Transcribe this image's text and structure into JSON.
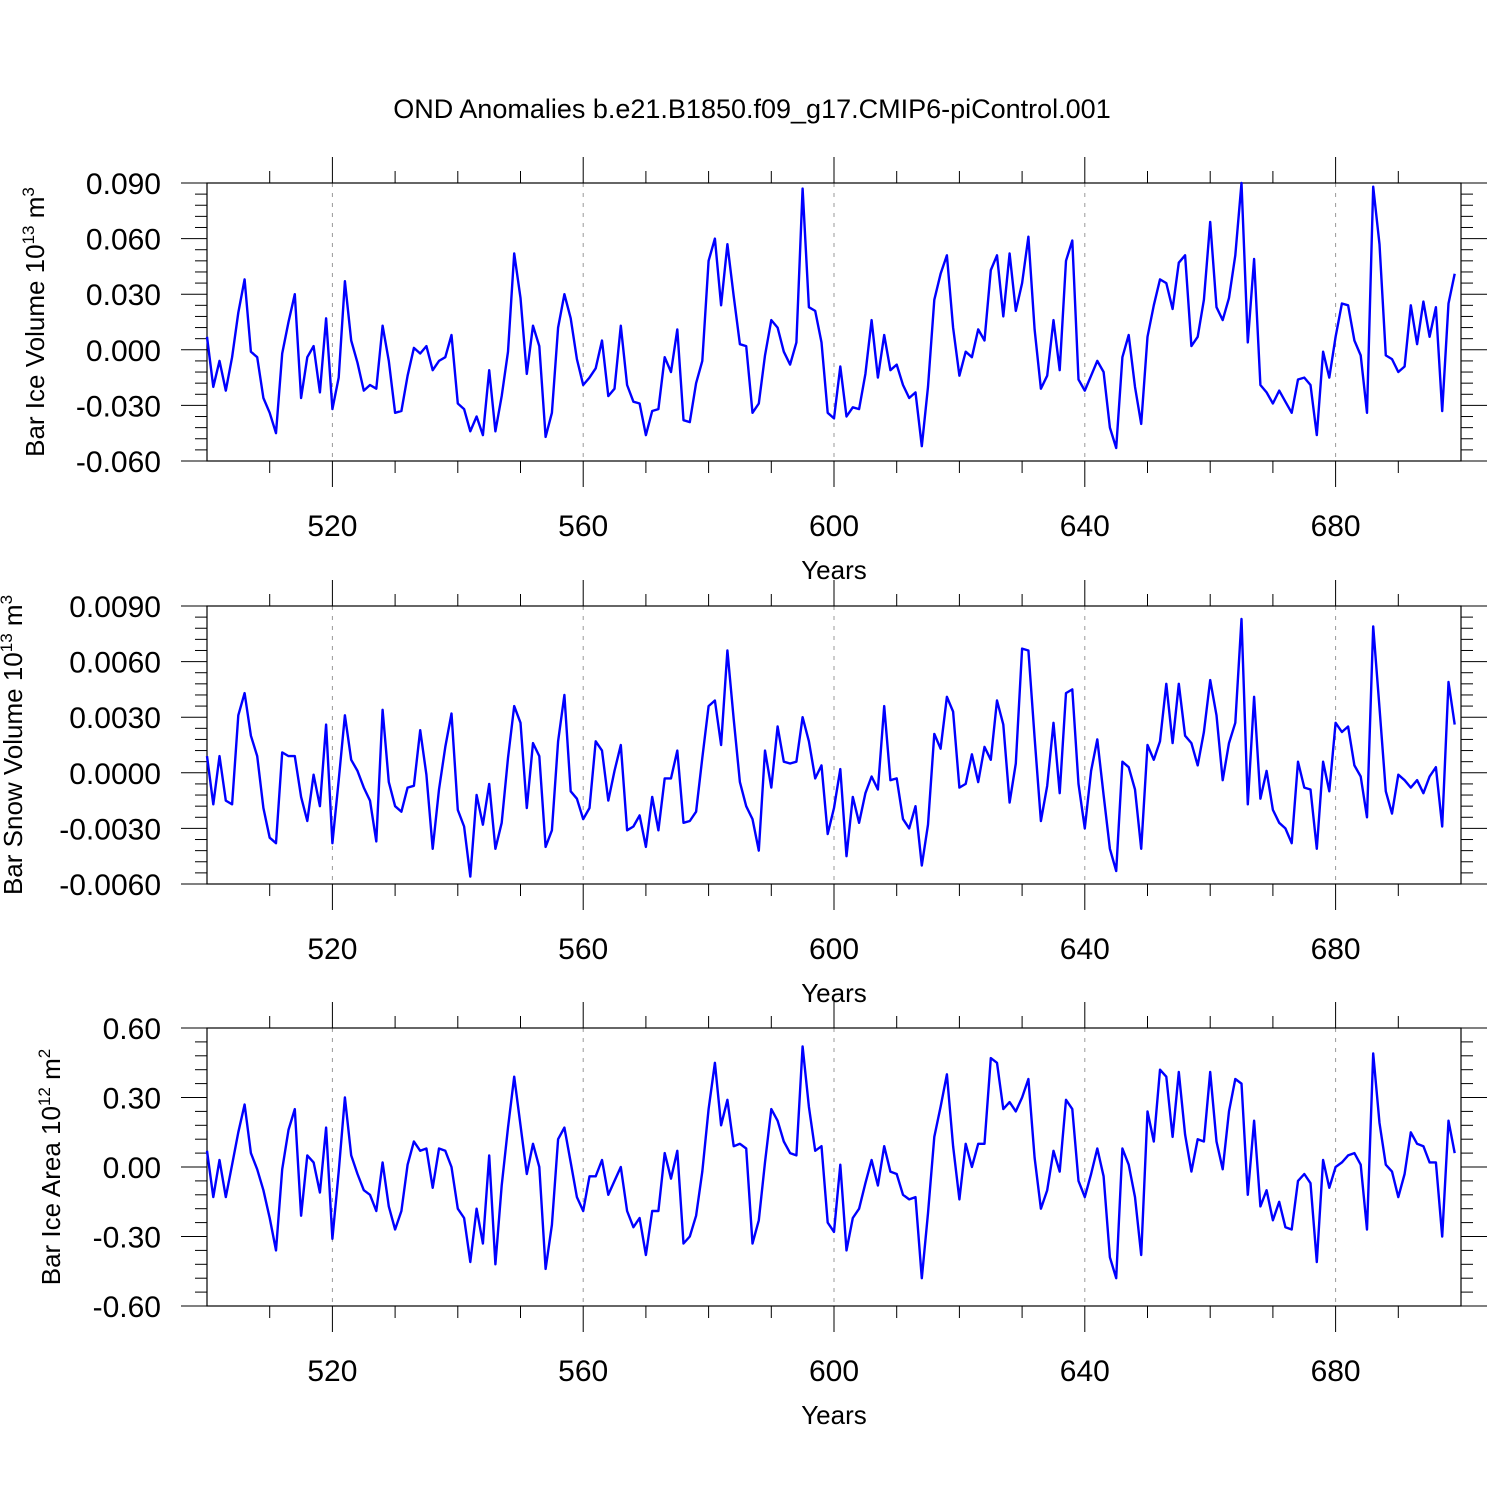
{
  "figure": {
    "title": "OND Anomalies b.e21.B1850.f09_g17.CMIP6-piControl.001",
    "line_color": "#0000ff"
  },
  "chart_data": [
    {
      "type": "line",
      "title": "OND Anomalies b.e21.B1850.f09_g17.CMIP6-piControl.001",
      "xlabel": "Years",
      "ylabel": "Bar Ice Volume",
      "ylabel_unit_base": "10",
      "ylabel_unit_exp": "13",
      "ylabel_unit_name": "m",
      "ylabel_unit_name_exp": "3",
      "xlim": [
        500,
        700
      ],
      "ylim": [
        -0.06,
        0.09
      ],
      "xticks": [
        520,
        560,
        600,
        640,
        680
      ],
      "xtick_labels": [
        "520",
        "560",
        "600",
        "640",
        "680"
      ],
      "yticks": [
        -0.06,
        -0.03,
        0.0,
        0.03,
        0.06,
        0.09
      ],
      "ytick_labels": [
        "-0.060",
        "-0.030",
        "0.000",
        "0.030",
        "0.060",
        "0.090"
      ],
      "x_start": 500,
      "values": [
        0.007,
        -0.02,
        -0.006,
        -0.022,
        -0.004,
        0.02,
        0.038,
        -0.001,
        -0.004,
        -0.026,
        -0.034,
        -0.045,
        -0.002,
        0.015,
        0.03,
        -0.026,
        -0.004,
        0.002,
        -0.023,
        0.017,
        -0.032,
        -0.015,
        0.037,
        0.005,
        -0.007,
        -0.022,
        -0.019,
        -0.021,
        0.013,
        -0.006,
        -0.034,
        -0.033,
        -0.014,
        0.001,
        -0.002,
        0.002,
        -0.011,
        -0.006,
        -0.004,
        0.008,
        -0.029,
        -0.032,
        -0.044,
        -0.036,
        -0.046,
        -0.011,
        -0.044,
        -0.025,
        -0.001,
        0.052,
        0.028,
        -0.013,
        0.013,
        0.002,
        -0.047,
        -0.034,
        0.012,
        0.03,
        0.017,
        -0.005,
        -0.019,
        -0.015,
        -0.01,
        0.005,
        -0.025,
        -0.021,
        0.013,
        -0.019,
        -0.028,
        -0.029,
        -0.046,
        -0.033,
        -0.032,
        -0.004,
        -0.012,
        0.011,
        -0.038,
        -0.039,
        -0.018,
        -0.006,
        0.048,
        0.06,
        0.024,
        0.057,
        0.029,
        0.003,
        0.002,
        -0.034,
        -0.029,
        -0.003,
        0.016,
        0.012,
        -0.001,
        -0.008,
        0.004,
        0.087,
        0.023,
        0.021,
        0.004,
        -0.034,
        -0.037,
        -0.009,
        -0.036,
        -0.031,
        -0.032,
        -0.013,
        0.016,
        -0.015,
        0.008,
        -0.011,
        -0.008,
        -0.019,
        -0.026,
        -0.023,
        -0.052,
        -0.02,
        0.027,
        0.041,
        0.051,
        0.012,
        -0.014,
        -0.001,
        -0.004,
        0.011,
        0.005,
        0.043,
        0.051,
        0.018,
        0.052,
        0.021,
        0.036,
        0.061,
        0.011,
        -0.021,
        -0.014,
        0.016,
        -0.011,
        0.048,
        0.059,
        -0.016,
        -0.022,
        -0.014,
        -0.006,
        -0.012,
        -0.042,
        -0.053,
        -0.004,
        0.008,
        -0.02,
        -0.04,
        0.007,
        0.024,
        0.038,
        0.036,
        0.022,
        0.047,
        0.051,
        0.002,
        0.007,
        0.027,
        0.069,
        0.023,
        0.016,
        0.028,
        0.051,
        0.09,
        0.004,
        0.049,
        -0.019,
        -0.023,
        -0.029,
        -0.022,
        -0.028,
        -0.034,
        -0.016,
        -0.015,
        -0.019,
        -0.046,
        -0.001,
        -0.015,
        0.007,
        0.025,
        0.024,
        0.005,
        -0.003,
        -0.034,
        0.088,
        0.057,
        -0.003,
        -0.005,
        -0.012,
        -0.009,
        0.024,
        0.003,
        0.026,
        0.007,
        0.023,
        -0.033,
        0.025,
        0.041
      ]
    },
    {
      "type": "line",
      "xlabel": "Years",
      "ylabel": "Bar Snow Volume",
      "ylabel_unit_base": "10",
      "ylabel_unit_exp": "13",
      "ylabel_unit_name": "m",
      "ylabel_unit_name_exp": "3",
      "xlim": [
        500,
        700
      ],
      "ylim": [
        -0.006,
        0.009
      ],
      "xticks": [
        520,
        560,
        600,
        640,
        680
      ],
      "xtick_labels": [
        "520",
        "560",
        "600",
        "640",
        "680"
      ],
      "yticks": [
        -0.006,
        -0.003,
        0.0,
        0.003,
        0.006,
        0.009
      ],
      "ytick_labels": [
        "-0.0060",
        "-0.0030",
        "0.0000",
        "0.0030",
        "0.0060",
        "0.0090"
      ],
      "x_start": 500,
      "values": [
        0.0009,
        -0.0017,
        0.0009,
        -0.0015,
        -0.0017,
        0.0031,
        0.0043,
        0.002,
        0.0009,
        -0.0019,
        -0.0035,
        -0.0038,
        0.0011,
        0.0009,
        0.0009,
        -0.0013,
        -0.0026,
        -0.0001,
        -0.0018,
        0.0026,
        -0.0038,
        -0.0004,
        0.0031,
        0.0007,
        0.0001,
        -0.0008,
        -0.0015,
        -0.0037,
        0.0034,
        -0.0005,
        -0.0018,
        -0.0021,
        -0.0008,
        -0.0007,
        0.0023,
        -0.0001,
        -0.0041,
        -0.0009,
        0.0014,
        0.0032,
        -0.002,
        -0.0029,
        -0.0056,
        -0.0012,
        -0.0028,
        -0.0006,
        -0.0041,
        -0.0027,
        0.0008,
        0.0036,
        0.0027,
        -0.0019,
        0.0016,
        0.0009,
        -0.004,
        -0.0031,
        0.0017,
        0.0042,
        -0.001,
        -0.0014,
        -0.0025,
        -0.0019,
        0.0017,
        0.0012,
        -0.0015,
        0.0001,
        0.0015,
        -0.0031,
        -0.0029,
        -0.0023,
        -0.004,
        -0.0013,
        -0.0031,
        -0.0003,
        -0.0003,
        0.0012,
        -0.0027,
        -0.0026,
        -0.0021,
        0.0008,
        0.0036,
        0.0039,
        0.0015,
        0.0066,
        0.0029,
        -0.0005,
        -0.0018,
        -0.0025,
        -0.0042,
        0.0012,
        -0.0008,
        0.0025,
        0.0006,
        0.0005,
        0.0006,
        0.003,
        0.0017,
        -0.0003,
        0.0004,
        -0.0033,
        -0.0019,
        0.0002,
        -0.0045,
        -0.0013,
        -0.0027,
        -0.0011,
        -0.0002,
        -0.0009,
        0.0036,
        -0.0004,
        -0.0003,
        -0.0025,
        -0.003,
        -0.0018,
        -0.005,
        -0.0028,
        0.0021,
        0.0013,
        0.0041,
        0.0033,
        -0.0008,
        -0.0006,
        0.001,
        -0.0005,
        0.0014,
        0.0007,
        0.0039,
        0.0026,
        -0.0016,
        0.0005,
        0.0067,
        0.0066,
        0.0019,
        -0.0026,
        -0.0007,
        0.0027,
        -0.0011,
        0.0043,
        0.0045,
        -0.0006,
        -0.003,
        0.0001,
        0.0018,
        -0.0012,
        -0.0041,
        -0.0053,
        0.0006,
        0.0003,
        -0.0009,
        -0.0041,
        0.0015,
        0.0007,
        0.0017,
        0.0048,
        0.0016,
        0.0048,
        0.002,
        0.0016,
        0.0004,
        0.0022,
        0.005,
        0.0031,
        -0.0004,
        0.0016,
        0.0027,
        0.0083,
        -0.0017,
        0.0041,
        -0.0014,
        0.0001,
        -0.002,
        -0.0027,
        -0.003,
        -0.0038,
        0.0006,
        -0.0008,
        -0.0009,
        -0.0041,
        0.0006,
        -0.001,
        0.0027,
        0.0022,
        0.0025,
        0.0004,
        -0.0002,
        -0.0024,
        0.0079,
        0.0035,
        -0.001,
        -0.0022,
        -0.0001,
        -0.0004,
        -0.0008,
        -0.0004,
        -0.0011,
        -0.0002,
        0.0003,
        -0.0029,
        0.0049,
        0.0026
      ]
    },
    {
      "type": "line",
      "xlabel": "Years",
      "ylabel": "Bar Ice Area",
      "ylabel_unit_base": "10",
      "ylabel_unit_exp": "12",
      "ylabel_unit_name": "m",
      "ylabel_unit_name_exp": "2",
      "xlim": [
        500,
        700
      ],
      "ylim": [
        -0.6,
        0.6
      ],
      "xticks": [
        520,
        560,
        600,
        640,
        680
      ],
      "xtick_labels": [
        "520",
        "560",
        "600",
        "640",
        "680"
      ],
      "yticks": [
        -0.6,
        -0.3,
        0.0,
        0.3,
        0.6
      ],
      "ytick_labels": [
        "-0.60",
        "-0.30",
        "0.00",
        "0.30",
        "0.60"
      ],
      "x_start": 500,
      "values": [
        0.07,
        -0.13,
        0.03,
        -0.13,
        0.01,
        0.15,
        0.27,
        0.06,
        -0.01,
        -0.1,
        -0.22,
        -0.36,
        -0.01,
        0.16,
        0.25,
        -0.21,
        0.05,
        0.02,
        -0.11,
        0.17,
        -0.31,
        -0.02,
        0.3,
        0.05,
        -0.03,
        -0.1,
        -0.12,
        -0.19,
        0.02,
        -0.17,
        -0.27,
        -0.19,
        0.01,
        0.11,
        0.07,
        0.08,
        -0.09,
        0.08,
        0.07,
        0.0,
        -0.18,
        -0.22,
        -0.41,
        -0.18,
        -0.33,
        0.05,
        -0.42,
        -0.08,
        0.17,
        0.39,
        0.18,
        -0.03,
        0.1,
        0.0,
        -0.44,
        -0.25,
        0.12,
        0.17,
        0.02,
        -0.13,
        -0.19,
        -0.04,
        -0.04,
        0.03,
        -0.12,
        -0.06,
        0.0,
        -0.19,
        -0.26,
        -0.22,
        -0.38,
        -0.19,
        -0.19,
        0.06,
        -0.05,
        0.07,
        -0.33,
        -0.3,
        -0.21,
        -0.02,
        0.25,
        0.45,
        0.18,
        0.29,
        0.09,
        0.1,
        0.08,
        -0.33,
        -0.23,
        0.02,
        0.25,
        0.2,
        0.11,
        0.06,
        0.05,
        0.52,
        0.26,
        0.07,
        0.09,
        -0.24,
        -0.28,
        0.01,
        -0.36,
        -0.22,
        -0.18,
        -0.07,
        0.03,
        -0.08,
        0.09,
        -0.02,
        -0.03,
        -0.12,
        -0.14,
        -0.13,
        -0.48,
        -0.2,
        0.13,
        0.26,
        0.4,
        0.09,
        -0.14,
        0.1,
        0.0,
        0.1,
        0.1,
        0.47,
        0.45,
        0.25,
        0.28,
        0.24,
        0.3,
        0.38,
        0.04,
        -0.18,
        -0.1,
        0.07,
        -0.02,
        0.29,
        0.25,
        -0.06,
        -0.13,
        -0.03,
        0.08,
        -0.04,
        -0.39,
        -0.48,
        0.08,
        0.01,
        -0.13,
        -0.38,
        0.24,
        0.11,
        0.42,
        0.39,
        0.13,
        0.41,
        0.14,
        -0.02,
        0.12,
        0.11,
        0.41,
        0.11,
        -0.01,
        0.24,
        0.38,
        0.36,
        -0.12,
        0.2,
        -0.17,
        -0.1,
        -0.23,
        -0.15,
        -0.26,
        -0.27,
        -0.06,
        -0.03,
        -0.07,
        -0.41,
        0.03,
        -0.09,
        0.0,
        0.02,
        0.05,
        0.06,
        0.01,
        -0.27,
        0.49,
        0.19,
        0.01,
        -0.02,
        -0.13,
        -0.03,
        0.15,
        0.1,
        0.09,
        0.02,
        0.02,
        -0.3,
        0.2,
        0.06
      ]
    }
  ]
}
